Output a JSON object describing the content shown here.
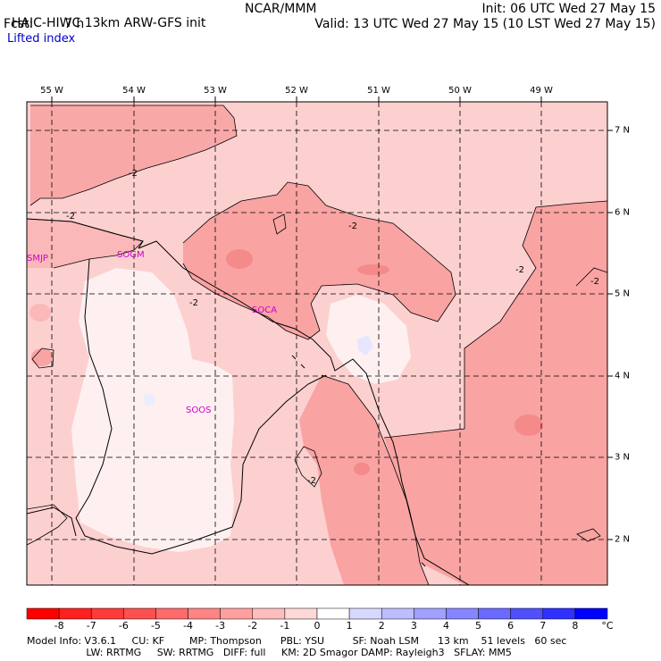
{
  "header": {
    "title": "HAIC-HIWC 13km ARW-GFS init",
    "org": "NCAR/MMM",
    "init": "Init: 06 UTC Wed 27 May 15",
    "fcst_label": "Fcst:",
    "fcst_value": "7 h",
    "valid": "Valid: 13 UTC Wed 27 May 15 (10 LST Wed 27 May 15)",
    "field": "Lifted index"
  },
  "map": {
    "lon_labels": [
      "55 W",
      "54 W",
      "53 W",
      "52 W",
      "51 W",
      "50 W",
      "49 W"
    ],
    "lat_labels": [
      "7 N",
      "6 N",
      "5 N",
      "4 N",
      "3 N",
      "2 N"
    ],
    "contour_labels": [
      "-2",
      "-2",
      "-2",
      "-2",
      "-2",
      "-2",
      "-2"
    ],
    "stations": [
      "SMJP",
      "SOGM",
      "SOCA",
      "SOOS"
    ],
    "colors": {
      "station": "#cc00cc",
      "bg_light": "#fdd0d0",
      "mid": "#f9a3a3",
      "dark": "#f58a8a",
      "near_zero": "#fef0f0"
    }
  },
  "colorbar": {
    "labels": [
      "-8",
      "-7",
      "-6",
      "-5",
      "-4",
      "-3",
      "-2",
      "-1",
      "0",
      "1",
      "2",
      "3",
      "4",
      "5",
      "6",
      "7",
      "8"
    ],
    "unit": "°C",
    "colors": [
      "#ff0000",
      "#ff2020",
      "#ff3b3b",
      "#ff5050",
      "#ff6a6a",
      "#ff8585",
      "#ffa0a0",
      "#ffbdbd",
      "#ffd8d8",
      "#ffffff",
      "#d8d8ff",
      "#bdbdff",
      "#a0a0ff",
      "#8585ff",
      "#6a6aff",
      "#5050ff",
      "#3030ff",
      "#0000ff"
    ]
  },
  "footer": {
    "line1": "Model Info: V3.6.1     CU: KF        MP: Thompson      PBL: YSU         SF: Noah LSM      13 km    51 levels   60 sec",
    "line2": "                   LW: RRTMG     SW: RRTMG   DIFF: full     KM: 2D Smagor DAMP: Rayleigh3   SFLAY: MM5"
  }
}
